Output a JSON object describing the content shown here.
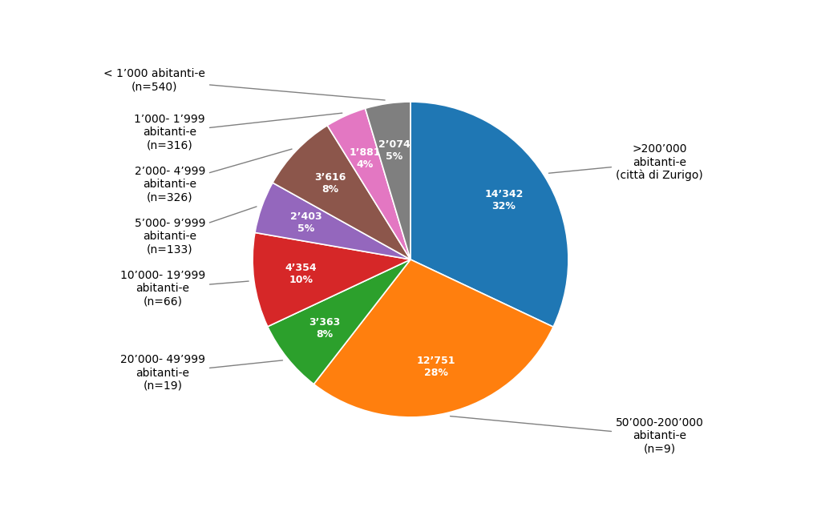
{
  "chart_data": {
    "type": "pie",
    "categories": [
      ">200’000\nabitanti-e\n(città di Zurigo)",
      "50’000-200’000\nabitanti-e\n(n=9)",
      "20’000- 49’999\nabitanti-e\n(n=19)",
      "10’000- 19’999\nabitanti-e\n(n=66)",
      "5’000- 9’999\nabitanti-e\n(n=133)",
      "2’000- 4’999\nabitanti-e\n(n=326)",
      "1’000- 1’999\nabitanti-e\n(n=316)",
      "< 1’000 abitanti-e\n(n=540)"
    ],
    "values": [
      14342,
      12751,
      3363,
      4354,
      2403,
      3616,
      1881,
      2074
    ],
    "value_labels": [
      "14’342\n32%",
      "12’751\n28%",
      "3’363\n8%",
      "4’354\n10%",
      "2’403\n5%",
      "3’616\n8%",
      "1’881\n4%",
      "2’074\n5%"
    ]
  }
}
